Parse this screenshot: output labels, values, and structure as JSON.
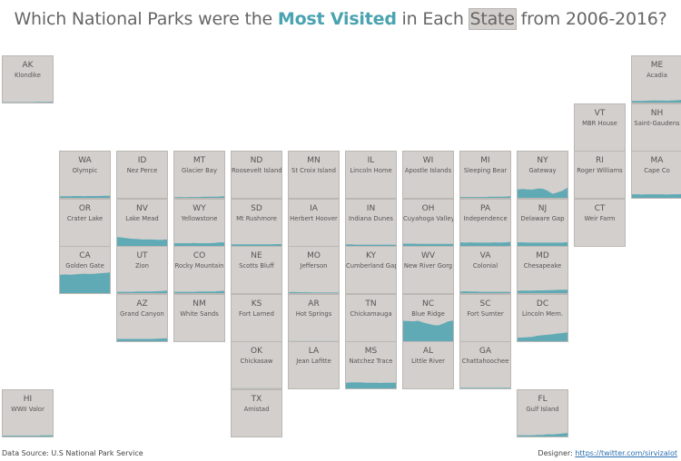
{
  "title": {
    "part1": "Which National Parks were the ",
    "highlight": "Most Visited",
    "part2": " in Each ",
    "boxed": "State",
    "part3": " from 2006-2016?"
  },
  "footer": {
    "source": "Data Source: U.S National Park Service",
    "designer_label": "Designer: ",
    "designer_link": "https://twitter.com/sirvizalot"
  },
  "colors": {
    "tile_bg": "#d3cfcc",
    "area": "#5aa8b3",
    "title_highlight": "#4aa3b0"
  },
  "chart_data": {
    "type": "area",
    "x": [
      2006,
      2007,
      2008,
      2009,
      2010,
      2011,
      2012,
      2013,
      2014,
      2015,
      2016
    ],
    "y_scale": "shared across tiles; values are fraction of the largest state's peak visitation (unitless, estimated)",
    "states": [
      {
        "abbr": "AK",
        "park": "Klondike",
        "row": 0,
        "col": 0,
        "values": [
          0.05,
          0.05,
          0.05,
          0.05,
          0.05,
          0.05,
          0.05,
          0.06,
          0.06,
          0.06,
          0.07
        ]
      },
      {
        "abbr": "ME",
        "park": "Acadia",
        "row": 0,
        "col": 11,
        "values": [
          0.1,
          0.1,
          0.1,
          0.11,
          0.12,
          0.12,
          0.12,
          0.11,
          0.12,
          0.13,
          0.15
        ]
      },
      {
        "abbr": "VT",
        "park": "MBR House",
        "row": 1,
        "col": 10,
        "values": [
          0,
          0,
          0,
          0,
          0,
          0,
          0,
          0,
          0,
          0,
          0
        ]
      },
      {
        "abbr": "NH",
        "park": "Saint-Gaudens",
        "row": 1,
        "col": 11,
        "values": [
          0,
          0,
          0,
          0,
          0,
          0,
          0,
          0,
          0,
          0,
          0
        ]
      },
      {
        "abbr": "WA",
        "park": "Olympic",
        "row": 2,
        "col": 1,
        "values": [
          0.1,
          0.1,
          0.1,
          0.11,
          0.11,
          0.1,
          0.11,
          0.11,
          0.11,
          0.12,
          0.12
        ]
      },
      {
        "abbr": "ID",
        "park": "Nez Perce",
        "row": 2,
        "col": 2,
        "values": [
          0.02,
          0.02,
          0.02,
          0.02,
          0.02,
          0.02,
          0.02,
          0.02,
          0.02,
          0.02,
          0.02
        ]
      },
      {
        "abbr": "MT",
        "park": "Glacier Bay",
        "row": 2,
        "col": 3,
        "values": [
          0.06,
          0.07,
          0.06,
          0.07,
          0.07,
          0.07,
          0.08,
          0.08,
          0.08,
          0.09,
          0.1
        ]
      },
      {
        "abbr": "ND",
        "park": "Roosevelt Island",
        "row": 2,
        "col": 4,
        "values": [
          0.02,
          0.02,
          0.02,
          0.02,
          0.02,
          0.02,
          0.02,
          0.02,
          0.02,
          0.02,
          0.02
        ]
      },
      {
        "abbr": "MN",
        "park": "St Croix Island",
        "row": 2,
        "col": 5,
        "values": [
          0.02,
          0.02,
          0.02,
          0.02,
          0.02,
          0.02,
          0.02,
          0.02,
          0.02,
          0.02,
          0.02
        ]
      },
      {
        "abbr": "IL",
        "park": "Lincoln Home",
        "row": 2,
        "col": 6,
        "values": [
          0.02,
          0.02,
          0.02,
          0.02,
          0.02,
          0.02,
          0.02,
          0.02,
          0.02,
          0.02,
          0.02
        ]
      },
      {
        "abbr": "WI",
        "park": "Apostle Islands",
        "row": 2,
        "col": 7,
        "values": [
          0.02,
          0.02,
          0.02,
          0.02,
          0.02,
          0.02,
          0.02,
          0.02,
          0.02,
          0.02,
          0.02
        ]
      },
      {
        "abbr": "MI",
        "park": "Sleeping Bear",
        "row": 2,
        "col": 8,
        "values": [
          0.07,
          0.07,
          0.07,
          0.07,
          0.07,
          0.07,
          0.08,
          0.08,
          0.08,
          0.09,
          0.1
        ]
      },
      {
        "abbr": "NY",
        "park": "Gateway",
        "row": 2,
        "col": 9,
        "values": [
          0.38,
          0.4,
          0.38,
          0.37,
          0.42,
          0.41,
          0.33,
          0.2,
          0.26,
          0.33,
          0.45
        ]
      },
      {
        "abbr": "RI",
        "park": "Roger Williams",
        "row": 2,
        "col": 10,
        "values": [
          0,
          0,
          0,
          0,
          0,
          0,
          0,
          0,
          0,
          0,
          0
        ]
      },
      {
        "abbr": "MA",
        "park": "Cape Co",
        "row": 2,
        "col": 11,
        "values": [
          0.18,
          0.18,
          0.17,
          0.18,
          0.18,
          0.18,
          0.18,
          0.17,
          0.18,
          0.18,
          0.19
        ]
      },
      {
        "abbr": "OR",
        "park": "Crater Lake",
        "row": 3,
        "col": 1,
        "values": [
          0.02,
          0.02,
          0.02,
          0.02,
          0.02,
          0.02,
          0.02,
          0.02,
          0.02,
          0.02,
          0.03
        ]
      },
      {
        "abbr": "NV",
        "park": "Lake Mead",
        "row": 3,
        "col": 2,
        "values": [
          0.4,
          0.38,
          0.35,
          0.33,
          0.32,
          0.3,
          0.3,
          0.3,
          0.29,
          0.29,
          0.3
        ]
      },
      {
        "abbr": "WY",
        "park": "Yellowstone",
        "row": 3,
        "col": 3,
        "values": [
          0.15,
          0.15,
          0.15,
          0.15,
          0.16,
          0.15,
          0.15,
          0.15,
          0.16,
          0.18,
          0.18
        ]
      },
      {
        "abbr": "SD",
        "park": "Mt Rushmore",
        "row": 3,
        "col": 4,
        "values": [
          0.1,
          0.1,
          0.1,
          0.1,
          0.1,
          0.1,
          0.1,
          0.1,
          0.1,
          0.11,
          0.11
        ]
      },
      {
        "abbr": "IA",
        "park": "Herbert Hoover",
        "row": 3,
        "col": 5,
        "values": [
          0.01,
          0.01,
          0.01,
          0.01,
          0.01,
          0.01,
          0.01,
          0.01,
          0.01,
          0.01,
          0.01
        ]
      },
      {
        "abbr": "IN",
        "park": "Indiana Dunes",
        "row": 3,
        "col": 6,
        "values": [
          0.1,
          0.1,
          0.09,
          0.09,
          0.09,
          0.09,
          0.09,
          0.09,
          0.09,
          0.09,
          0.08
        ]
      },
      {
        "abbr": "OH",
        "park": "Cuyahoga Valley",
        "row": 3,
        "col": 7,
        "values": [
          0.13,
          0.13,
          0.13,
          0.12,
          0.12,
          0.12,
          0.12,
          0.12,
          0.12,
          0.12,
          0.12
        ]
      },
      {
        "abbr": "PA",
        "park": "Independence",
        "row": 3,
        "col": 8,
        "values": [
          0.18,
          0.17,
          0.18,
          0.17,
          0.17,
          0.17,
          0.17,
          0.18,
          0.17,
          0.18,
          0.2
        ]
      },
      {
        "abbr": "NJ",
        "park": "Delaware Gap",
        "row": 3,
        "col": 9,
        "values": [
          0.18,
          0.18,
          0.17,
          0.17,
          0.17,
          0.17,
          0.17,
          0.17,
          0.17,
          0.17,
          0.19
        ]
      },
      {
        "abbr": "CT",
        "park": "Weir Farm",
        "row": 3,
        "col": 10,
        "values": [
          0,
          0,
          0,
          0,
          0,
          0,
          0,
          0,
          0,
          0,
          0
        ]
      },
      {
        "abbr": "CA",
        "park": "Golden Gate",
        "row": 4,
        "col": 1,
        "values": [
          0.78,
          0.8,
          0.79,
          0.8,
          0.82,
          0.83,
          0.82,
          0.83,
          0.85,
          0.86,
          0.88
        ]
      },
      {
        "abbr": "UT",
        "park": "Zion",
        "row": 4,
        "col": 2,
        "values": [
          0.09,
          0.09,
          0.09,
          0.09,
          0.1,
          0.1,
          0.1,
          0.1,
          0.11,
          0.12,
          0.14
        ]
      },
      {
        "abbr": "CO",
        "park": "Rocky Mountain",
        "row": 4,
        "col": 3,
        "values": [
          0.09,
          0.09,
          0.09,
          0.09,
          0.09,
          0.1,
          0.1,
          0.1,
          0.1,
          0.12,
          0.13
        ]
      },
      {
        "abbr": "NE",
        "park": "Scotts Bluff",
        "row": 4,
        "col": 4,
        "values": [
          0.01,
          0.01,
          0.01,
          0.01,
          0.01,
          0.01,
          0.01,
          0.01,
          0.01,
          0.01,
          0.01
        ]
      },
      {
        "abbr": "MO",
        "park": "Jefferson",
        "row": 4,
        "col": 5,
        "values": [
          0.07,
          0.08,
          0.07,
          0.07,
          0.07,
          0.06,
          0.06,
          0.06,
          0.06,
          0.06,
          0.06
        ]
      },
      {
        "abbr": "KY",
        "park": "Cumberland Gap",
        "row": 4,
        "col": 6,
        "values": [
          0.02,
          0.02,
          0.02,
          0.02,
          0.02,
          0.02,
          0.02,
          0.02,
          0.02,
          0.02,
          0.02
        ]
      },
      {
        "abbr": "WV",
        "park": "New River Gorg",
        "row": 4,
        "col": 7,
        "values": [
          0.03,
          0.03,
          0.03,
          0.03,
          0.03,
          0.03,
          0.03,
          0.03,
          0.03,
          0.03,
          0.03
        ]
      },
      {
        "abbr": "VA",
        "park": "Colonial",
        "row": 4,
        "col": 8,
        "values": [
          0.1,
          0.11,
          0.1,
          0.1,
          0.09,
          0.09,
          0.09,
          0.09,
          0.09,
          0.09,
          0.09
        ]
      },
      {
        "abbr": "MD",
        "park": "Chesapeake",
        "row": 4,
        "col": 9,
        "values": [
          0.13,
          0.14,
          0.14,
          0.14,
          0.15,
          0.15,
          0.16,
          0.16,
          0.17,
          0.17,
          0.18
        ]
      },
      {
        "abbr": "AZ",
        "park": "Grand Canyon",
        "row": 5,
        "col": 2,
        "values": [
          0.13,
          0.13,
          0.13,
          0.13,
          0.13,
          0.13,
          0.13,
          0.13,
          0.14,
          0.15,
          0.16
        ]
      },
      {
        "abbr": "NM",
        "park": "White Sands",
        "row": 5,
        "col": 3,
        "values": [
          0.02,
          0.02,
          0.02,
          0.02,
          0.02,
          0.02,
          0.02,
          0.02,
          0.02,
          0.02,
          0.02
        ]
      },
      {
        "abbr": "KS",
        "park": "Fort Larned",
        "row": 5,
        "col": 4,
        "values": [
          0.01,
          0.01,
          0.01,
          0.01,
          0.01,
          0.01,
          0.01,
          0.01,
          0.01,
          0.01,
          0.01
        ]
      },
      {
        "abbr": "AR",
        "park": "Hot Springs",
        "row": 5,
        "col": 5,
        "values": [
          0.04,
          0.04,
          0.04,
          0.04,
          0.04,
          0.04,
          0.04,
          0.04,
          0.04,
          0.04,
          0.04
        ]
      },
      {
        "abbr": "TN",
        "park": "Chickamauga",
        "row": 5,
        "col": 6,
        "values": [
          0.03,
          0.03,
          0.03,
          0.03,
          0.03,
          0.03,
          0.03,
          0.03,
          0.03,
          0.03,
          0.03
        ]
      },
      {
        "abbr": "NC",
        "park": "Blue Ridge",
        "row": 5,
        "col": 7,
        "values": [
          0.87,
          0.86,
          0.85,
          0.87,
          0.8,
          0.75,
          0.7,
          0.68,
          0.75,
          0.85,
          0.88
        ]
      },
      {
        "abbr": "SC",
        "park": "Fort Sumter",
        "row": 5,
        "col": 8,
        "values": [
          0.02,
          0.02,
          0.02,
          0.02,
          0.02,
          0.02,
          0.02,
          0.02,
          0.02,
          0.02,
          0.02
        ]
      },
      {
        "abbr": "DC",
        "park": "Lincoln Mem.",
        "row": 5,
        "col": 9,
        "values": [
          0.18,
          0.19,
          0.2,
          0.22,
          0.26,
          0.28,
          0.3,
          0.32,
          0.35,
          0.37,
          0.4
        ]
      },
      {
        "abbr": "OK",
        "park": "Chickasaw",
        "row": 6,
        "col": 4,
        "values": [
          0.04,
          0.04,
          0.04,
          0.04,
          0.04,
          0.04,
          0.04,
          0.04,
          0.04,
          0.04,
          0.04
        ]
      },
      {
        "abbr": "LA",
        "park": "Jean Lafitte",
        "row": 6,
        "col": 5,
        "values": [
          0.03,
          0.03,
          0.03,
          0.03,
          0.03,
          0.03,
          0.03,
          0.03,
          0.03,
          0.03,
          0.03
        ]
      },
      {
        "abbr": "MS",
        "park": "Natchez Trace",
        "row": 6,
        "col": 6,
        "values": [
          0.27,
          0.28,
          0.28,
          0.28,
          0.27,
          0.27,
          0.27,
          0.26,
          0.27,
          0.27,
          0.27
        ]
      },
      {
        "abbr": "AL",
        "park": "Little River",
        "row": 6,
        "col": 7,
        "values": [
          0.03,
          0.03,
          0.03,
          0.03,
          0.03,
          0.03,
          0.03,
          0.03,
          0.03,
          0.03,
          0.03
        ]
      },
      {
        "abbr": "GA",
        "park": "Chattahoochee",
        "row": 6,
        "col": 8,
        "values": [
          0.06,
          0.06,
          0.06,
          0.06,
          0.06,
          0.06,
          0.06,
          0.06,
          0.06,
          0.06,
          0.06
        ]
      },
      {
        "abbr": "HI",
        "park": "WWII Valor",
        "row": 7,
        "col": 0,
        "values": [
          0.07,
          0.07,
          0.07,
          0.07,
          0.07,
          0.07,
          0.07,
          0.07,
          0.08,
          0.08,
          0.08
        ]
      },
      {
        "abbr": "TX",
        "park": "Amistad",
        "row": 7,
        "col": 4,
        "values": [
          0.02,
          0.02,
          0.02,
          0.02,
          0.02,
          0.02,
          0.02,
          0.02,
          0.02,
          0.02,
          0.03
        ]
      },
      {
        "abbr": "FL",
        "park": "Gulf Island",
        "row": 7,
        "col": 9,
        "values": [
          0.08,
          0.09,
          0.08,
          0.09,
          0.1,
          0.1,
          0.13,
          0.12,
          0.14,
          0.16,
          0.18
        ]
      }
    ]
  }
}
